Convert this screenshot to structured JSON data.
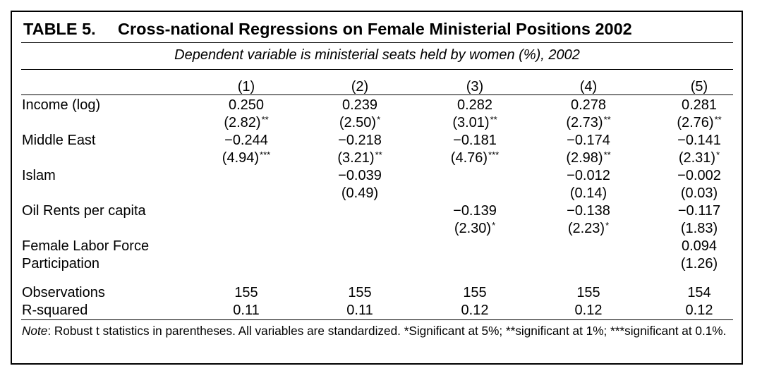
{
  "table": {
    "label": "TABLE 5.",
    "title": "Cross-national Regressions on Female Ministerial Positions 2002",
    "dependent": "Dependent variable is ministerial seats held by women (%), 2002",
    "columns": [
      "(1)",
      "(2)",
      "(3)",
      "(4)",
      "(5)"
    ],
    "rows": [
      {
        "label": "Income (log)",
        "coef": [
          "0.250",
          "0.239",
          "0.282",
          "0.278",
          "0.281"
        ],
        "t": [
          "(2.82)",
          "(2.50)",
          "(3.01)",
          "(2.73)",
          "(2.76)"
        ],
        "stars": [
          "**",
          "*",
          "**",
          "**",
          "**"
        ]
      },
      {
        "label": "Middle East",
        "coef": [
          "−0.244",
          "−0.218",
          "−0.181",
          "−0.174",
          "−0.141"
        ],
        "t": [
          "(4.94)",
          "(3.21)",
          "(4.76)",
          "(2.98)",
          "(2.31)"
        ],
        "stars": [
          "***",
          "**",
          "***",
          "**",
          "*"
        ]
      },
      {
        "label": "Islam",
        "coef": [
          "",
          "−0.039",
          "",
          "−0.012",
          "−0.002"
        ],
        "t": [
          "",
          "(0.49)",
          "",
          "(0.14)",
          "(0.03)"
        ],
        "stars": [
          "",
          "",
          "",
          "",
          ""
        ]
      },
      {
        "label": "Oil Rents per capita",
        "coef": [
          "",
          "",
          "−0.139",
          "−0.138",
          "−0.117"
        ],
        "t": [
          "",
          "",
          "(2.30)",
          "(2.23)",
          "(1.83)"
        ],
        "stars": [
          "",
          "",
          "*",
          "*",
          ""
        ]
      },
      {
        "label": "Female Labor Force",
        "label2": "Participation",
        "coef": [
          "",
          "",
          "",
          "",
          "0.094"
        ],
        "t": [
          "",
          "",
          "",
          "",
          "(1.26)"
        ],
        "stars": [
          "",
          "",
          "",
          "",
          ""
        ]
      }
    ],
    "stats": [
      {
        "label": "Observations",
        "values": [
          "155",
          "155",
          "155",
          "155",
          "154"
        ]
      },
      {
        "label": "R-squared",
        "values": [
          "0.11",
          "0.11",
          "0.12",
          "0.12",
          "0.12"
        ]
      }
    ],
    "note_label": "Note",
    "note_text": ": Robust t statistics in parentheses. All variables are standardized. *Significant at 5%; **significant at 1%; ***significant at 0.1%."
  }
}
